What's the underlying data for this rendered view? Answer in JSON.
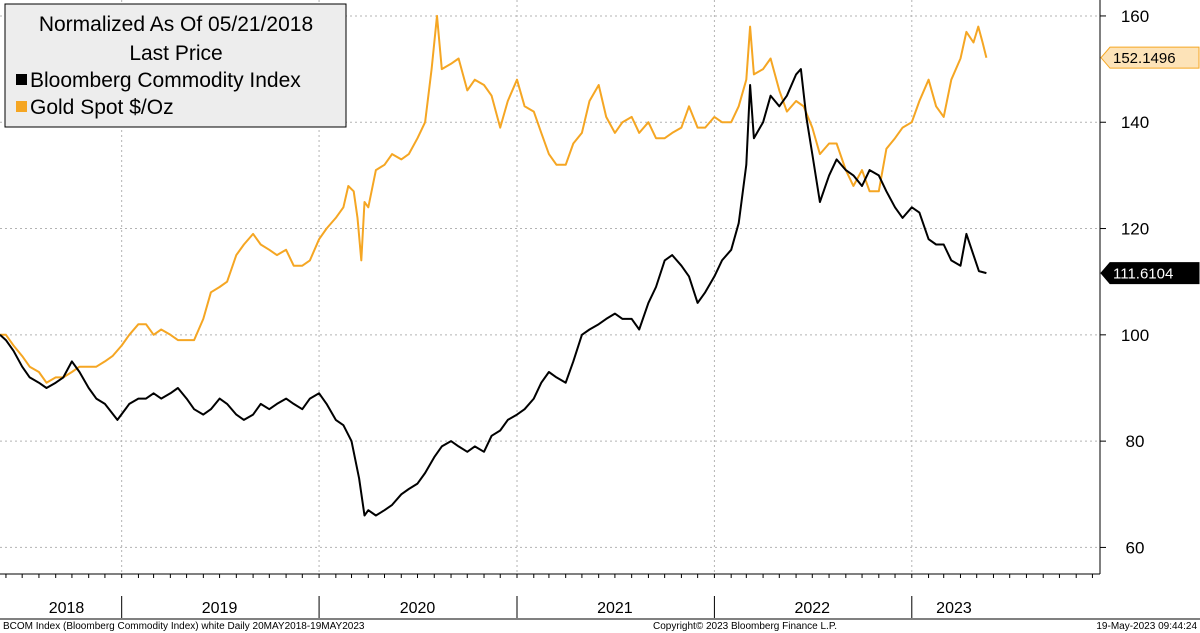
{
  "chart_data": {
    "type": "line",
    "title": "Normalized As Of 05/21/2018",
    "subtitle": "Last Price",
    "ylim": [
      55,
      163
    ],
    "grid": true,
    "legend_placement": "top-left",
    "y_ticks": [
      60,
      80,
      100,
      120,
      140,
      160
    ],
    "x_labels": [
      {
        "label": "2018",
        "at": "2018-09-21"
      },
      {
        "label": "2019",
        "at": "2019-07-01"
      },
      {
        "label": "2020",
        "at": "2020-07-01"
      },
      {
        "label": "2021",
        "at": "2021-07-01"
      },
      {
        "label": "2022",
        "at": "2022-07-01"
      },
      {
        "label": "2023",
        "at": "2023-03-20"
      }
    ],
    "year_boundaries": [
      "2019-01-01",
      "2020-01-01",
      "2021-01-01",
      "2022-01-01",
      "2023-01-01"
    ],
    "x_range": [
      "2018-05-21",
      "2023-12-15"
    ],
    "series": [
      {
        "name": "Bloomberg Commodity Index",
        "color": "#000000",
        "last_value": "111.6104",
        "points": [
          [
            "2018-05-21",
            100
          ],
          [
            "2018-06-01",
            99
          ],
          [
            "2018-06-15",
            97
          ],
          [
            "2018-07-01",
            94
          ],
          [
            "2018-07-15",
            92
          ],
          [
            "2018-08-01",
            91
          ],
          [
            "2018-08-15",
            90
          ],
          [
            "2018-09-01",
            91
          ],
          [
            "2018-09-15",
            92
          ],
          [
            "2018-10-01",
            95
          ],
          [
            "2018-10-15",
            93
          ],
          [
            "2018-11-01",
            90
          ],
          [
            "2018-11-15",
            88
          ],
          [
            "2018-12-01",
            87
          ],
          [
            "2018-12-24",
            84
          ],
          [
            "2019-01-15",
            87
          ],
          [
            "2019-02-01",
            88
          ],
          [
            "2019-02-15",
            88
          ],
          [
            "2019-03-01",
            89
          ],
          [
            "2019-03-15",
            88
          ],
          [
            "2019-04-01",
            89
          ],
          [
            "2019-04-15",
            90
          ],
          [
            "2019-05-01",
            88
          ],
          [
            "2019-05-15",
            86
          ],
          [
            "2019-06-01",
            85
          ],
          [
            "2019-06-15",
            86
          ],
          [
            "2019-07-01",
            88
          ],
          [
            "2019-07-15",
            87
          ],
          [
            "2019-08-01",
            85
          ],
          [
            "2019-08-15",
            84
          ],
          [
            "2019-09-01",
            85
          ],
          [
            "2019-09-15",
            87
          ],
          [
            "2019-10-01",
            86
          ],
          [
            "2019-10-15",
            87
          ],
          [
            "2019-11-01",
            88
          ],
          [
            "2019-11-15",
            87
          ],
          [
            "2019-12-01",
            86
          ],
          [
            "2019-12-15",
            88
          ],
          [
            "2020-01-01",
            89
          ],
          [
            "2020-01-15",
            87
          ],
          [
            "2020-02-01",
            84
          ],
          [
            "2020-02-15",
            83
          ],
          [
            "2020-03-01",
            80
          ],
          [
            "2020-03-15",
            73
          ],
          [
            "2020-03-25",
            66
          ],
          [
            "2020-04-01",
            67
          ],
          [
            "2020-04-15",
            66
          ],
          [
            "2020-05-01",
            67
          ],
          [
            "2020-05-15",
            68
          ],
          [
            "2020-06-01",
            70
          ],
          [
            "2020-06-15",
            71
          ],
          [
            "2020-07-01",
            72
          ],
          [
            "2020-07-15",
            74
          ],
          [
            "2020-08-01",
            77
          ],
          [
            "2020-08-15",
            79
          ],
          [
            "2020-09-01",
            80
          ],
          [
            "2020-09-15",
            79
          ],
          [
            "2020-10-01",
            78
          ],
          [
            "2020-10-15",
            79
          ],
          [
            "2020-11-01",
            78
          ],
          [
            "2020-11-15",
            81
          ],
          [
            "2020-12-01",
            82
          ],
          [
            "2020-12-15",
            84
          ],
          [
            "2021-01-01",
            85
          ],
          [
            "2021-01-15",
            86
          ],
          [
            "2021-02-01",
            88
          ],
          [
            "2021-02-15",
            91
          ],
          [
            "2021-03-01",
            93
          ],
          [
            "2021-03-15",
            92
          ],
          [
            "2021-04-01",
            91
          ],
          [
            "2021-04-15",
            95
          ],
          [
            "2021-05-01",
            100
          ],
          [
            "2021-05-15",
            101
          ],
          [
            "2021-06-01",
            102
          ],
          [
            "2021-06-15",
            103
          ],
          [
            "2021-07-01",
            104
          ],
          [
            "2021-07-15",
            103
          ],
          [
            "2021-08-01",
            103
          ],
          [
            "2021-08-15",
            101
          ],
          [
            "2021-09-01",
            106
          ],
          [
            "2021-09-15",
            109
          ],
          [
            "2021-10-01",
            114
          ],
          [
            "2021-10-15",
            115
          ],
          [
            "2021-11-01",
            113
          ],
          [
            "2021-11-15",
            111
          ],
          [
            "2021-12-01",
            106
          ],
          [
            "2021-12-15",
            108
          ],
          [
            "2022-01-01",
            111
          ],
          [
            "2022-01-15",
            114
          ],
          [
            "2022-02-01",
            116
          ],
          [
            "2022-02-15",
            121
          ],
          [
            "2022-03-01",
            132
          ],
          [
            "2022-03-08",
            147
          ],
          [
            "2022-03-15",
            137
          ],
          [
            "2022-04-01",
            140
          ],
          [
            "2022-04-15",
            145
          ],
          [
            "2022-05-01",
            143
          ],
          [
            "2022-05-15",
            145
          ],
          [
            "2022-06-01",
            149
          ],
          [
            "2022-06-10",
            150
          ],
          [
            "2022-06-20",
            141
          ],
          [
            "2022-07-01",
            134
          ],
          [
            "2022-07-15",
            125
          ],
          [
            "2022-08-01",
            130
          ],
          [
            "2022-08-15",
            133
          ],
          [
            "2022-09-01",
            131
          ],
          [
            "2022-09-15",
            130
          ],
          [
            "2022-10-01",
            128
          ],
          [
            "2022-10-15",
            131
          ],
          [
            "2022-11-01",
            130
          ],
          [
            "2022-11-15",
            127
          ],
          [
            "2022-12-01",
            124
          ],
          [
            "2022-12-15",
            122
          ],
          [
            "2023-01-01",
            124
          ],
          [
            "2023-01-15",
            123
          ],
          [
            "2023-02-01",
            118
          ],
          [
            "2023-02-15",
            117
          ],
          [
            "2023-03-01",
            117
          ],
          [
            "2023-03-15",
            114
          ],
          [
            "2023-04-01",
            113
          ],
          [
            "2023-04-12",
            119
          ],
          [
            "2023-04-25",
            115
          ],
          [
            "2023-05-05",
            112
          ],
          [
            "2023-05-19",
            111.61
          ]
        ]
      },
      {
        "name": "Gold Spot $/Oz",
        "color": "#f5a623",
        "last_value": "152.1496",
        "points": [
          [
            "2018-05-21",
            100
          ],
          [
            "2018-06-01",
            100
          ],
          [
            "2018-06-15",
            98
          ],
          [
            "2018-07-01",
            96
          ],
          [
            "2018-07-15",
            94
          ],
          [
            "2018-08-01",
            93
          ],
          [
            "2018-08-15",
            91
          ],
          [
            "2018-09-01",
            92
          ],
          [
            "2018-09-15",
            92
          ],
          [
            "2018-10-01",
            93
          ],
          [
            "2018-10-15",
            94
          ],
          [
            "2018-11-01",
            94
          ],
          [
            "2018-11-15",
            94
          ],
          [
            "2018-12-01",
            95
          ],
          [
            "2018-12-15",
            96
          ],
          [
            "2019-01-01",
            98
          ],
          [
            "2019-01-15",
            100
          ],
          [
            "2019-02-01",
            102
          ],
          [
            "2019-02-15",
            102
          ],
          [
            "2019-03-01",
            100
          ],
          [
            "2019-03-15",
            101
          ],
          [
            "2019-04-01",
            100
          ],
          [
            "2019-04-15",
            99
          ],
          [
            "2019-05-01",
            99
          ],
          [
            "2019-05-15",
            99
          ],
          [
            "2019-06-01",
            103
          ],
          [
            "2019-06-15",
            108
          ],
          [
            "2019-07-01",
            109
          ],
          [
            "2019-07-15",
            110
          ],
          [
            "2019-08-01",
            115
          ],
          [
            "2019-08-15",
            117
          ],
          [
            "2019-09-01",
            119
          ],
          [
            "2019-09-15",
            117
          ],
          [
            "2019-10-01",
            116
          ],
          [
            "2019-10-15",
            115
          ],
          [
            "2019-11-01",
            116
          ],
          [
            "2019-11-15",
            113
          ],
          [
            "2019-12-01",
            113
          ],
          [
            "2019-12-15",
            114
          ],
          [
            "2020-01-01",
            118
          ],
          [
            "2020-01-15",
            120
          ],
          [
            "2020-02-01",
            122
          ],
          [
            "2020-02-15",
            124
          ],
          [
            "2020-02-24",
            128
          ],
          [
            "2020-03-05",
            127
          ],
          [
            "2020-03-12",
            122
          ],
          [
            "2020-03-19",
            114
          ],
          [
            "2020-03-25",
            125
          ],
          [
            "2020-04-01",
            124
          ],
          [
            "2020-04-15",
            131
          ],
          [
            "2020-05-01",
            132
          ],
          [
            "2020-05-15",
            134
          ],
          [
            "2020-06-01",
            133
          ],
          [
            "2020-06-15",
            134
          ],
          [
            "2020-07-01",
            137
          ],
          [
            "2020-07-15",
            140
          ],
          [
            "2020-07-27",
            150
          ],
          [
            "2020-08-06",
            160
          ],
          [
            "2020-08-15",
            150
          ],
          [
            "2020-09-01",
            151
          ],
          [
            "2020-09-15",
            152
          ],
          [
            "2020-10-01",
            146
          ],
          [
            "2020-10-15",
            148
          ],
          [
            "2020-11-01",
            147
          ],
          [
            "2020-11-15",
            145
          ],
          [
            "2020-12-01",
            139
          ],
          [
            "2020-12-15",
            144
          ],
          [
            "2021-01-01",
            148
          ],
          [
            "2021-01-15",
            143
          ],
          [
            "2021-02-01",
            142
          ],
          [
            "2021-02-15",
            138
          ],
          [
            "2021-03-01",
            134
          ],
          [
            "2021-03-15",
            132
          ],
          [
            "2021-04-01",
            132
          ],
          [
            "2021-04-15",
            136
          ],
          [
            "2021-05-01",
            138
          ],
          [
            "2021-05-15",
            144
          ],
          [
            "2021-06-01",
            147
          ],
          [
            "2021-06-15",
            141
          ],
          [
            "2021-07-01",
            138
          ],
          [
            "2021-07-15",
            140
          ],
          [
            "2021-08-01",
            141
          ],
          [
            "2021-08-15",
            138
          ],
          [
            "2021-09-01",
            140
          ],
          [
            "2021-09-15",
            137
          ],
          [
            "2021-10-01",
            137
          ],
          [
            "2021-10-15",
            138
          ],
          [
            "2021-11-01",
            139
          ],
          [
            "2021-11-15",
            143
          ],
          [
            "2021-12-01",
            139
          ],
          [
            "2021-12-15",
            139
          ],
          [
            "2022-01-01",
            141
          ],
          [
            "2022-01-15",
            140
          ],
          [
            "2022-02-01",
            140
          ],
          [
            "2022-02-15",
            143
          ],
          [
            "2022-03-01",
            148
          ],
          [
            "2022-03-08",
            158
          ],
          [
            "2022-03-15",
            149
          ],
          [
            "2022-04-01",
            150
          ],
          [
            "2022-04-15",
            152
          ],
          [
            "2022-05-01",
            146
          ],
          [
            "2022-05-15",
            142
          ],
          [
            "2022-06-01",
            144
          ],
          [
            "2022-06-15",
            143
          ],
          [
            "2022-07-01",
            139
          ],
          [
            "2022-07-15",
            134
          ],
          [
            "2022-08-01",
            136
          ],
          [
            "2022-08-15",
            136
          ],
          [
            "2022-09-01",
            131
          ],
          [
            "2022-09-15",
            128
          ],
          [
            "2022-10-01",
            131
          ],
          [
            "2022-10-15",
            127
          ],
          [
            "2022-11-01",
            127
          ],
          [
            "2022-11-15",
            135
          ],
          [
            "2022-12-01",
            137
          ],
          [
            "2022-12-15",
            139
          ],
          [
            "2023-01-01",
            140
          ],
          [
            "2023-01-15",
            144
          ],
          [
            "2023-02-01",
            148
          ],
          [
            "2023-02-15",
            143
          ],
          [
            "2023-03-01",
            141
          ],
          [
            "2023-03-15",
            148
          ],
          [
            "2023-04-01",
            152
          ],
          [
            "2023-04-12",
            157
          ],
          [
            "2023-04-25",
            155
          ],
          [
            "2023-05-04",
            158
          ],
          [
            "2023-05-12",
            155
          ],
          [
            "2023-05-19",
            152.15
          ]
        ]
      }
    ]
  },
  "footer": {
    "left": "BCOM Index (Bloomberg Commodity Index) white  Daily 20MAY2018-19MAY2023",
    "center": "Copyright© 2023 Bloomberg Finance L.P.",
    "right": "19-May-2023 09:44:24"
  }
}
